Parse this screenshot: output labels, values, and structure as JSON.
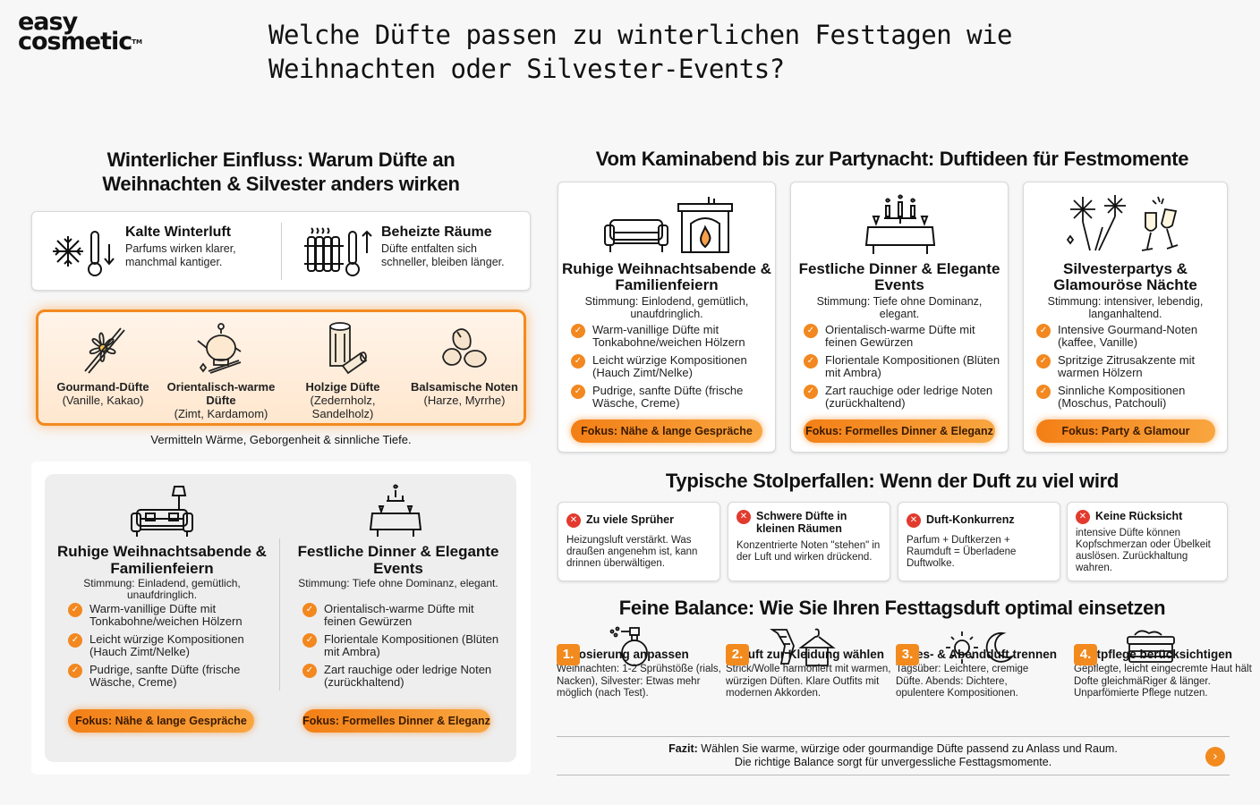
{
  "brand": {
    "line1": "easy",
    "line2": "cosmetic",
    "tm": "TM"
  },
  "title": "Welche Düfte passen zu winterlichen Festtagen wie Weihnachten oder Silvester-Events?",
  "colors": {
    "accent": "#f28a1e",
    "warning": "#e23a2e"
  },
  "left": {
    "heading": "Winterlicher Einfluss: Warum Düfte an Weihnachten & Silvester anders wirken",
    "climate": [
      {
        "title": "Kalte Winterluft",
        "desc": "Parfums wirken klarer, manchmal kantiger.",
        "icon": "snowflake-thermometer-icon"
      },
      {
        "title": "Beheizte Räume",
        "desc": "Düfte entfalten sich schneller, bleiben länger.",
        "icon": "radiator-thermometer-icon"
      }
    ],
    "notes": [
      {
        "title": "Gourmand-Düfte",
        "sub": "(Vanille, Kakao)",
        "icon": "vanilla-flower-icon"
      },
      {
        "title": "Orientalisch-warme Düfte",
        "sub": "(Zimt, Kardamom)",
        "icon": "oriental-lamp-icon"
      },
      {
        "title": "Holzige Düfte",
        "sub": "(Zedernholz, Sandelholz)",
        "icon": "wood-logs-icon"
      },
      {
        "title": "Balsamische Noten",
        "sub": "(Harze, Myrrhe)",
        "icon": "resin-stones-icon"
      }
    ],
    "notes_caption": "Vermitteln Wärme, Geborgenheit & sinnliche Tiefe.",
    "lower": [
      {
        "title": "Ruhige Weihnachtsabende & Familienfeiern",
        "mood": "Stimmung: Einladend, gemütlich, unaufdringlich.",
        "items": [
          "Warm-vanillige Düfte mit Tonkabohne/weichen Hölzern",
          "Leicht würzige Kompositionen (Hauch Zimt/Nelke)",
          "Pudrige, sanfte Düfte (frische Wäsche, Creme)"
        ],
        "focus": "Fokus: Nähe & lange Gespräche",
        "icon": "sofa-lamp-icon"
      },
      {
        "title": "Festliche Dinner & Elegante Events",
        "mood": "Stimmung: Tiefe ohne Dominanz, elegant.",
        "items": [
          "Orientalisch-warme Düfte mit feinen Gewürzen",
          "Florientale Kompositionen (Blüten mit Ambra)",
          "Zart rauchige oder ledrige Noten (zurückhaltend)"
        ],
        "focus": "Fokus: Formelles Dinner & Eleganz",
        "icon": "dinner-table-icon"
      }
    ]
  },
  "right": {
    "heading": "Vom Kaminabend bis zur Partynacht: Duftideen für Festmomente",
    "events": [
      {
        "title": "Ruhige Weihnachtsabende & Familienfeiern",
        "mood": "Stimmung: Einlodend, gemütlich, unaufdringlich.",
        "items": [
          "Warm-vanillige Düfte mit Tonkabohne/weichen Hölzern",
          "Leicht würzige Kompositionen (Hauch Zimt/Nelke)",
          "Pudrige, sanfte Düfte (frische Wäsche, Creme)"
        ],
        "focus": "Fokus: Nähe & lange Gespräche",
        "icon": "sofa-fireplace-icon"
      },
      {
        "title": "Festliche Dinner & Elegante Events",
        "mood": "Stimmung: Tiefe ohne Dominanz, elegant.",
        "items": [
          "Orientalisch-warme Düfte mit feinen Gewürzen",
          "Florientale Kompositionen (Blüten mit Ambra)",
          "Zart rauchige oder ledrige Noten (zurückhaltend)"
        ],
        "focus": "Fokus: Formelles Dinner & Eleganz",
        "icon": "candle-dinner-icon"
      },
      {
        "title": "Silvesterpartys & Glamouröse Nächte",
        "mood": "Stimmung: intensiver, lebendig, langanhaltend.",
        "items": [
          "Intensive Gourmand-Noten (kaffee, Vanille)",
          "Spritzige Zitrusakzente mit warmen Hölzern",
          "Sinnliche Kompositionen (Moschus, Patchouli)"
        ],
        "focus": "Fokus: Party & Glamour",
        "icon": "fireworks-champagne-icon"
      }
    ],
    "pitfalls_heading": "Typische Stolperfallen: Wenn der Duft zu viel wird",
    "pitfalls": [
      {
        "title": "Zu viele Sprüher",
        "desc": "Heizungsluft verstärkt. Was draußen angenehm ist, kann drinnen überwältigen."
      },
      {
        "title": "Schwere Düfte in kleinen Räumen",
        "desc": "Konzentrierte Noten \"stehen\" in der Luft und wirken drückend."
      },
      {
        "title": "Duft-Konkurrenz",
        "desc": "Parfum + Duftkerzen + Raumduft = Überladene Duftwolke."
      },
      {
        "title": "Keine Rücksicht",
        "desc": "intensive Düfte können Kopfschmerzan oder Übelkeit auslösen. Zurückhaltung wahren."
      }
    ],
    "balance_heading": "Feine Balance: Wie Sie Ihren Festtagsduft optimal einsetzen",
    "steps": [
      {
        "num": "1.",
        "title": "1. Dosierung anpassen",
        "desc": "Weihnachten: 1-2 Sprühstöße (rials, Nacken), Silvester: Etwas mehr möglich (nach Test).",
        "icon": "perfume-spray-icon"
      },
      {
        "num": "2.",
        "title": "2. Duft zur Kleidung wählen",
        "desc": "Strick/Wolle harmoniert mit warmen, würzigen Düften. Klare Outfits mit modernen Akkorden.",
        "icon": "scarf-hanger-icon"
      },
      {
        "num": "3.",
        "title": "Tages- & Abendduft trennen",
        "desc": "Tagsüber: Leichtere, cremige Düfte. Abends: Dichtere, opulentere Kompositionen.",
        "icon": "sun-moon-icon"
      },
      {
        "num": "4.",
        "title": "Hautpflege berücksichtigen",
        "desc": "Gepflegte, leicht eingecremte Haut hält Dofte gleichmäRiger & länger. Unparfömierte Pflege nutzen.",
        "icon": "cream-jar-icon"
      }
    ],
    "fazit_label": "Fazit:",
    "fazit_text": " Wählen Sie warme, würzige oder gourmandige Düfte passend zu Anlass und Raum.",
    "fazit_text2": "Die richtige Balance sorgt für unvergessliche Festtagsmomente.",
    "arrow": "›"
  }
}
